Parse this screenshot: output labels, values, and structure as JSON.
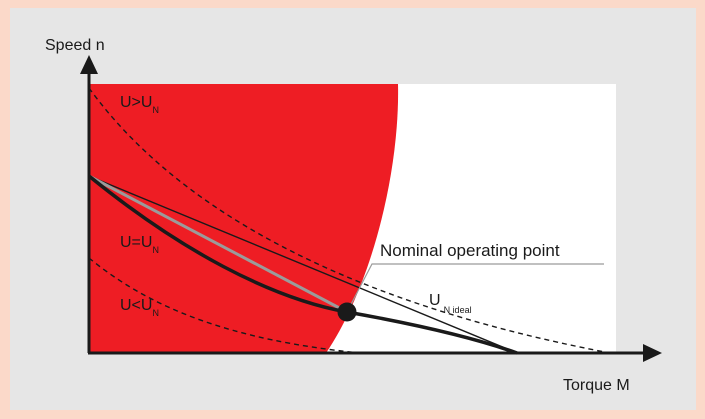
{
  "colors": {
    "page_background": "#fbd9c9",
    "panel_background": "#e6e6e6",
    "plot_area": "#ffffff",
    "region_fill": "#ee1d24",
    "curve_color": "#1a1a1a",
    "ideal_line_color": "#9b9b9b"
  },
  "axes": {
    "y_label": "Speed n",
    "x_label": "Torque M"
  },
  "labels": {
    "u_gt": {
      "main": "U>U",
      "sub": "N"
    },
    "u_eq": {
      "main": "U=U",
      "sub": "N"
    },
    "u_lt": {
      "main": "U<U",
      "sub": "N"
    },
    "u_ideal": {
      "main": "U",
      "sub": "N ideal"
    },
    "nominal_point": "Nominal operating point"
  },
  "icons": {
    "operating_point": "filled-circle-marker"
  }
}
